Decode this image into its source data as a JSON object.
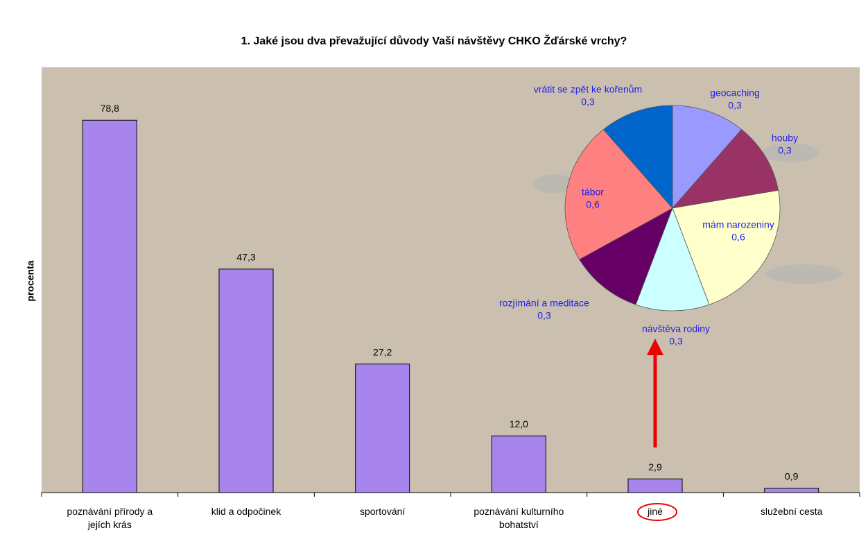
{
  "chart_data": [
    {
      "type": "bar",
      "title": "1. Jaké jsou dva převažující důvody Vaší návštěvy CHKO Žďárské vrchy?",
      "ylabel": "procenta",
      "categories": [
        "poznávání přírody a jejích krás",
        "klid a odpočinek",
        "sportování",
        "poznávání kulturního bohatství",
        "jiné",
        "služební cesta"
      ],
      "values": [
        78.8,
        47.3,
        27.2,
        12.0,
        2.9,
        0.9
      ],
      "value_labels": [
        "78,8",
        "47,3",
        "27,2",
        "12,0",
        "2,9",
        "0,9"
      ],
      "color": "#a785ec",
      "ylim": [
        0,
        90
      ]
    },
    {
      "type": "pie",
      "categories": [
        "geocaching",
        "houby",
        "mám narozeniny",
        "návštěva rodiny",
        "rozjímání a meditace",
        "tábor",
        "vrátit se zpět ke kořenům"
      ],
      "values": [
        0.3,
        0.3,
        0.6,
        0.3,
        0.3,
        0.6,
        0.3
      ],
      "value_labels": [
        "0,3",
        "0,3",
        "0,6",
        "0,3",
        "0,3",
        "0,6",
        "0,3"
      ],
      "colors": [
        "#9999ff",
        "#993366",
        "#ffffcc",
        "#ccffff",
        "#660066",
        "#ff8080",
        "#0066cc"
      ]
    }
  ]
}
